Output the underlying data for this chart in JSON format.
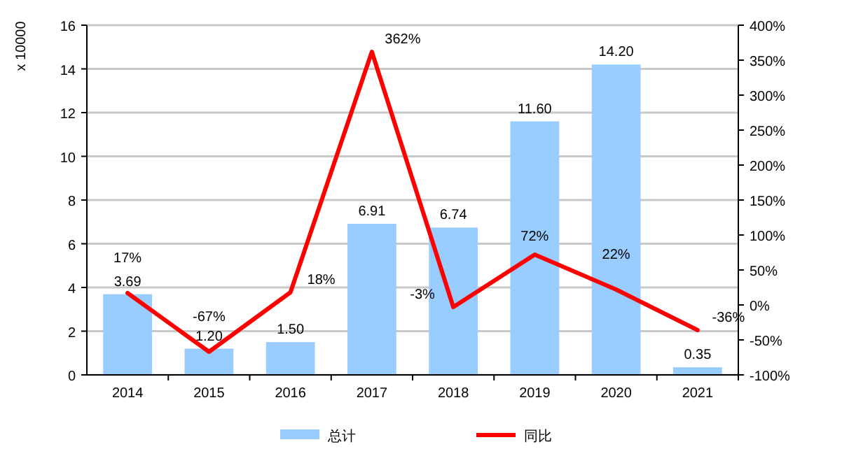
{
  "chart_data": {
    "type": "bar",
    "ylabel": "x 10000",
    "categories": [
      "2014",
      "2015",
      "2016",
      "2017",
      "2018",
      "2019",
      "2020",
      "2021"
    ],
    "series": [
      {
        "name": "总计",
        "color": "#99ccff",
        "values": [
          3.69,
          1.2,
          1.5,
          6.91,
          6.74,
          11.6,
          14.2,
          0.35
        ],
        "value_labels": [
          "3.69",
          "1.20",
          "1.50",
          "6.91",
          "6.74",
          "11.60",
          "14.20",
          "0.35"
        ]
      },
      {
        "name": "同比",
        "type": "line",
        "axis": "y2",
        "color": "#ff0000",
        "values": [
          17,
          -67,
          18,
          362,
          -3,
          72,
          22,
          -36
        ],
        "value_labels": [
          "17%",
          "-67%",
          "18%",
          "362%",
          "-3%",
          "72%",
          "22%",
          "-36%"
        ]
      }
    ],
    "ylim": [
      0,
      16
    ],
    "yticks": [
      0,
      2,
      4,
      6,
      8,
      10,
      12,
      14,
      16
    ],
    "y2lim": [
      -100,
      400
    ],
    "y2ticks": [
      {
        "value": -100,
        "label": "-100%"
      },
      {
        "value": -50,
        "label": "-50%"
      },
      {
        "value": 0,
        "label": "0%"
      },
      {
        "value": 50,
        "label": "50%"
      },
      {
        "value": 100,
        "label": "100%"
      },
      {
        "value": 150,
        "label": "150%"
      },
      {
        "value": 200,
        "label": "200%"
      },
      {
        "value": 250,
        "label": "250%"
      },
      {
        "value": 300,
        "label": "300%"
      },
      {
        "value": 350,
        "label": "350%"
      },
      {
        "value": 400,
        "label": "400%"
      }
    ],
    "grid": "y",
    "legend": "bottom",
    "marker": "none",
    "line_style": "solid"
  }
}
